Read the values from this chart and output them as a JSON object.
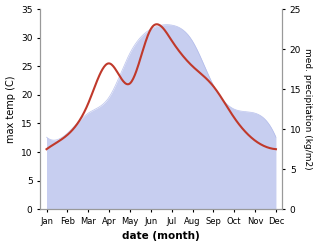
{
  "months": [
    "Jan",
    "Feb",
    "Mar",
    "Apr",
    "May",
    "Jun",
    "Jul",
    "Aug",
    "Sep",
    "Oct",
    "Nov",
    "Dec"
  ],
  "max_temp": [
    10.5,
    13.0,
    18.5,
    25.5,
    22.0,
    31.5,
    29.5,
    25.0,
    21.5,
    16.0,
    12.0,
    10.5
  ],
  "precipitation": [
    9.0,
    9.5,
    12.0,
    14.0,
    19.5,
    22.5,
    23.0,
    21.0,
    15.5,
    12.5,
    12.0,
    9.0
  ],
  "temp_color": "#c0392b",
  "precip_fill_color": "#aab4e8",
  "precip_fill_alpha": 0.65,
  "xlabel": "date (month)",
  "ylabel_left": "max temp (C)",
  "ylabel_right": "med. precipitation (kg/m2)",
  "ylim_left": [
    0,
    35
  ],
  "ylim_right": [
    0,
    25
  ],
  "yticks_left": [
    0,
    5,
    10,
    15,
    20,
    25,
    30,
    35
  ],
  "yticks_right": [
    0,
    5,
    10,
    15,
    20,
    25
  ],
  "background_color": "#ffffff",
  "spine_color": "#999999",
  "line_width": 1.5,
  "fig_width": 3.18,
  "fig_height": 2.47,
  "dpi": 100
}
